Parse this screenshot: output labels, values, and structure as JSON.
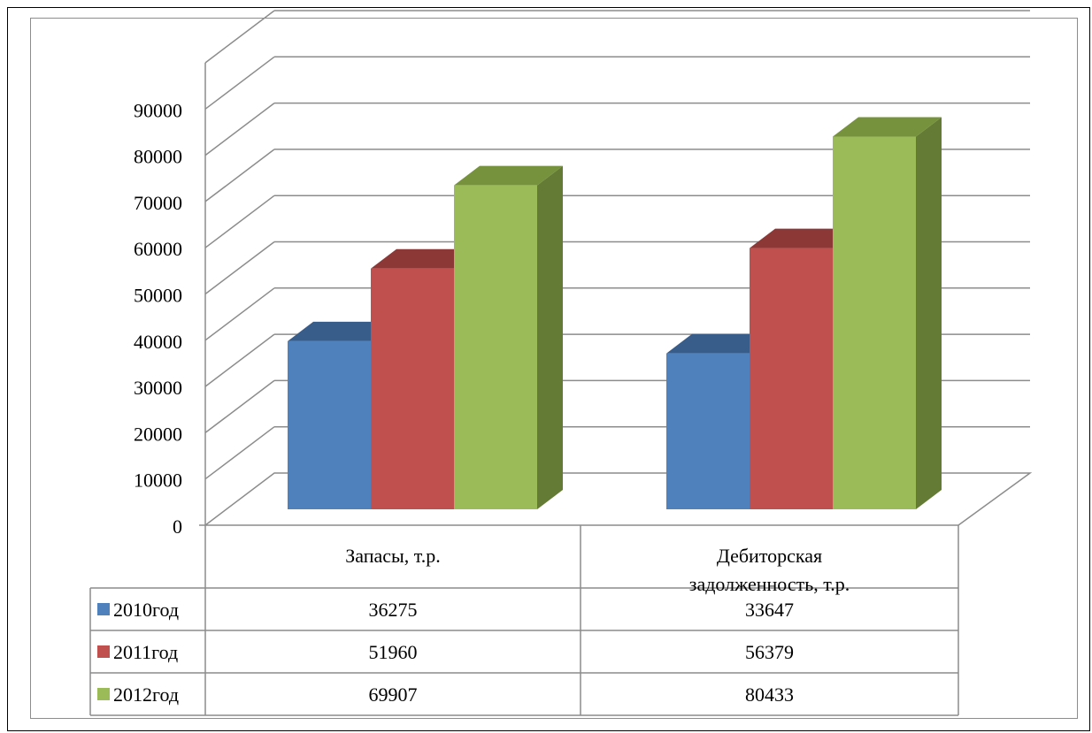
{
  "chart_data": {
    "type": "bar",
    "categories": [
      "Запасы, т.р.",
      "Дебиторская задолженность, т.р."
    ],
    "series": [
      {
        "name": "2010год",
        "values": [
          36275,
          33647
        ],
        "color": "#4f81bd",
        "top_color": "#385d8a",
        "side_color": "#2c4a6e"
      },
      {
        "name": "2011год",
        "values": [
          51960,
          56379
        ],
        "color": "#c0504d",
        "top_color": "#8c3836",
        "side_color": "#7a302e"
      },
      {
        "name": "2012год",
        "values": [
          69907,
          80433
        ],
        "color": "#9bbb59",
        "top_color": "#76923c",
        "side_color": "#647b35"
      }
    ],
    "y_ticks": [
      "0",
      "10000",
      "20000",
      "30000",
      "40000",
      "50000",
      "60000",
      "70000",
      "80000",
      "90000"
    ],
    "ylim": [
      0,
      90000
    ],
    "grid": true,
    "three_d": true,
    "data_table": true
  }
}
